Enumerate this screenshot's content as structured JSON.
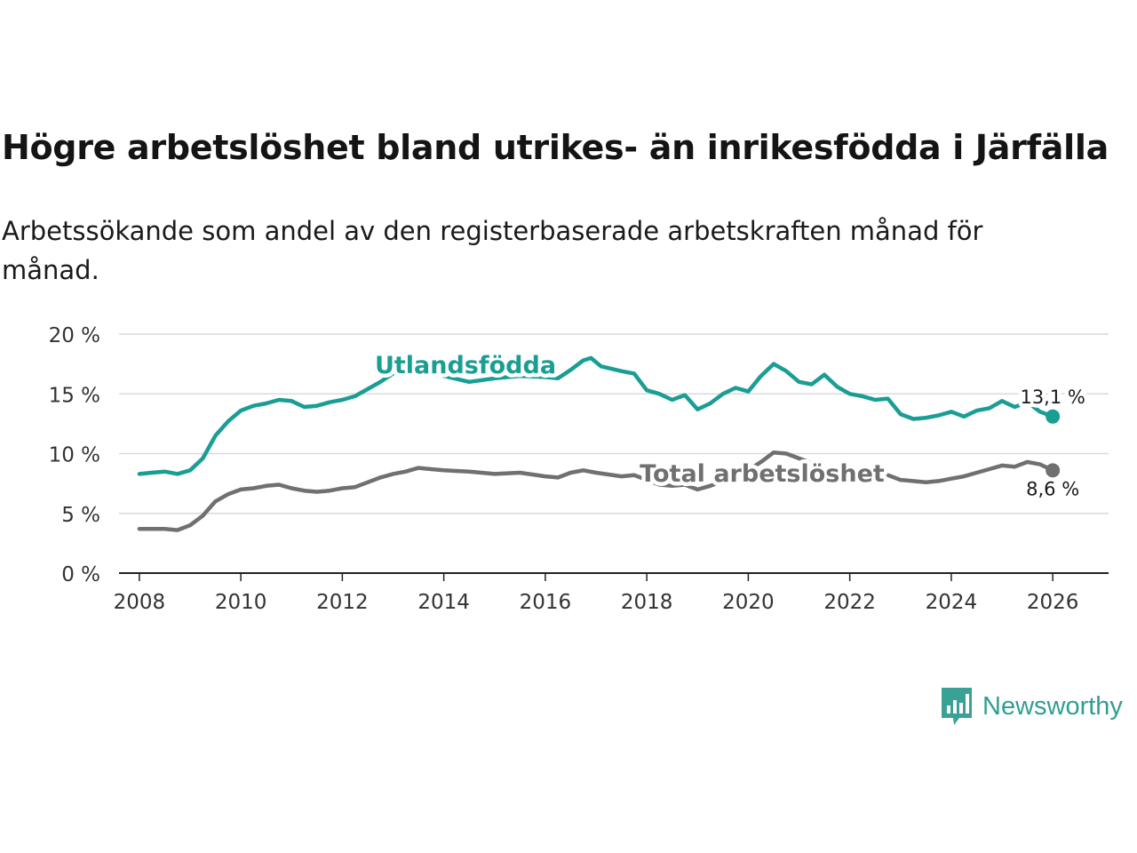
{
  "title": "Högre arbetslöshet bland utrikes- än inrikesfödda i Järfälla",
  "subtitle": "Arbetssökande som andel av den registerbaserade arbetskraften månad för månad.",
  "colors": {
    "foreign": "#1a9e94",
    "total": "#707070",
    "grid": "#d9d9d9",
    "axis": "#222222",
    "logo": "#3aa197"
  },
  "logo": {
    "text": "Newsworthy",
    "icon": "bar-chart-speech-bubble-icon"
  },
  "chart_data": {
    "type": "line",
    "title": "Högre arbetslöshet bland utrikes- än inrikesfödda i Järfälla",
    "xlabel": "",
    "ylabel": "",
    "xlim": [
      2007.6,
      2027.1
    ],
    "ylim": [
      0,
      20
    ],
    "y_ticks": [
      0,
      5,
      10,
      15,
      20
    ],
    "y_tick_labels": [
      "0 %",
      "5 %",
      "10 %",
      "15 %",
      "20 %"
    ],
    "x_ticks": [
      2008,
      2010,
      2012,
      2014,
      2016,
      2018,
      2020,
      2022,
      2024,
      2026
    ],
    "x_tick_labels": [
      "2008",
      "2010",
      "2012",
      "2014",
      "2016",
      "2018",
      "2020",
      "2022",
      "2024",
      "2026"
    ],
    "grid": true,
    "series": [
      {
        "name": "Utlandsfödda",
        "label": "Utlandsfödda",
        "end_label": "13,1 %",
        "points": [
          [
            2008.0,
            8.3
          ],
          [
            2008.25,
            8.4
          ],
          [
            2008.5,
            8.5
          ],
          [
            2008.75,
            8.3
          ],
          [
            2009.0,
            8.6
          ],
          [
            2009.25,
            9.6
          ],
          [
            2009.5,
            11.5
          ],
          [
            2009.75,
            12.7
          ],
          [
            2010.0,
            13.6
          ],
          [
            2010.25,
            14.0
          ],
          [
            2010.5,
            14.2
          ],
          [
            2010.75,
            14.5
          ],
          [
            2011.0,
            14.4
          ],
          [
            2011.25,
            13.9
          ],
          [
            2011.5,
            14.0
          ],
          [
            2011.75,
            14.3
          ],
          [
            2012.0,
            14.5
          ],
          [
            2012.25,
            14.8
          ],
          [
            2012.5,
            15.4
          ],
          [
            2012.75,
            16.0
          ],
          [
            2013.0,
            16.7
          ],
          [
            2013.25,
            17.2
          ],
          [
            2013.5,
            17.0
          ],
          [
            2013.75,
            16.8
          ],
          [
            2014.0,
            16.5
          ],
          [
            2014.5,
            16.0
          ],
          [
            2015.0,
            16.3
          ],
          [
            2015.5,
            16.5
          ],
          [
            2016.0,
            16.4
          ],
          [
            2016.25,
            16.3
          ],
          [
            2016.5,
            17.0
          ],
          [
            2016.75,
            17.8
          ],
          [
            2016.9,
            18.0
          ],
          [
            2017.1,
            17.3
          ],
          [
            2017.5,
            16.9
          ],
          [
            2017.75,
            16.7
          ],
          [
            2018.0,
            15.3
          ],
          [
            2018.25,
            15.0
          ],
          [
            2018.5,
            14.5
          ],
          [
            2018.75,
            14.9
          ],
          [
            2019.0,
            13.7
          ],
          [
            2019.25,
            14.2
          ],
          [
            2019.5,
            15.0
          ],
          [
            2019.75,
            15.5
          ],
          [
            2020.0,
            15.2
          ],
          [
            2020.25,
            16.5
          ],
          [
            2020.5,
            17.5
          ],
          [
            2020.75,
            16.9
          ],
          [
            2021.0,
            16.0
          ],
          [
            2021.25,
            15.8
          ],
          [
            2021.5,
            16.6
          ],
          [
            2021.75,
            15.6
          ],
          [
            2022.0,
            15.0
          ],
          [
            2022.25,
            14.8
          ],
          [
            2022.5,
            14.5
          ],
          [
            2022.75,
            14.6
          ],
          [
            2023.0,
            13.3
          ],
          [
            2023.25,
            12.9
          ],
          [
            2023.5,
            13.0
          ],
          [
            2023.75,
            13.2
          ],
          [
            2024.0,
            13.5
          ],
          [
            2024.25,
            13.1
          ],
          [
            2024.5,
            13.6
          ],
          [
            2024.75,
            13.8
          ],
          [
            2025.0,
            14.4
          ],
          [
            2025.25,
            13.9
          ],
          [
            2025.5,
            14.3
          ],
          [
            2025.75,
            13.5
          ],
          [
            2026.0,
            13.1
          ]
        ]
      },
      {
        "name": "Total arbetslöshet",
        "label": "Total arbetslöshet",
        "end_label": "8,6 %",
        "points": [
          [
            2008.0,
            3.7
          ],
          [
            2008.25,
            3.7
          ],
          [
            2008.5,
            3.7
          ],
          [
            2008.75,
            3.6
          ],
          [
            2009.0,
            4.0
          ],
          [
            2009.25,
            4.8
          ],
          [
            2009.5,
            6.0
          ],
          [
            2009.75,
            6.6
          ],
          [
            2010.0,
            7.0
          ],
          [
            2010.25,
            7.1
          ],
          [
            2010.5,
            7.3
          ],
          [
            2010.75,
            7.4
          ],
          [
            2011.0,
            7.1
          ],
          [
            2011.25,
            6.9
          ],
          [
            2011.5,
            6.8
          ],
          [
            2011.75,
            6.9
          ],
          [
            2012.0,
            7.1
          ],
          [
            2012.25,
            7.2
          ],
          [
            2012.5,
            7.6
          ],
          [
            2012.75,
            8.0
          ],
          [
            2013.0,
            8.3
          ],
          [
            2013.25,
            8.5
          ],
          [
            2013.5,
            8.8
          ],
          [
            2013.75,
            8.7
          ],
          [
            2014.0,
            8.6
          ],
          [
            2014.5,
            8.5
          ],
          [
            2015.0,
            8.3
          ],
          [
            2015.5,
            8.4
          ],
          [
            2016.0,
            8.1
          ],
          [
            2016.25,
            8.0
          ],
          [
            2016.5,
            8.4
          ],
          [
            2016.75,
            8.6
          ],
          [
            2017.0,
            8.4
          ],
          [
            2017.5,
            8.1
          ],
          [
            2017.75,
            8.2
          ],
          [
            2018.0,
            7.8
          ],
          [
            2018.25,
            7.4
          ],
          [
            2018.5,
            7.3
          ],
          [
            2018.75,
            7.4
          ],
          [
            2019.0,
            7.0
          ],
          [
            2019.25,
            7.3
          ],
          [
            2019.5,
            7.7
          ],
          [
            2019.75,
            8.2
          ],
          [
            2020.0,
            8.6
          ],
          [
            2020.25,
            9.3
          ],
          [
            2020.5,
            10.1
          ],
          [
            2020.75,
            10.0
          ],
          [
            2021.0,
            9.6
          ],
          [
            2021.25,
            9.2
          ],
          [
            2021.5,
            8.6
          ],
          [
            2021.75,
            8.5
          ],
          [
            2022.0,
            8.4
          ],
          [
            2022.25,
            8.3
          ],
          [
            2022.5,
            8.2
          ],
          [
            2022.75,
            8.2
          ],
          [
            2023.0,
            7.8
          ],
          [
            2023.25,
            7.7
          ],
          [
            2023.5,
            7.6
          ],
          [
            2023.75,
            7.7
          ],
          [
            2024.0,
            7.9
          ],
          [
            2024.25,
            8.1
          ],
          [
            2024.5,
            8.4
          ],
          [
            2024.75,
            8.7
          ],
          [
            2025.0,
            9.0
          ],
          [
            2025.25,
            8.9
          ],
          [
            2025.5,
            9.3
          ],
          [
            2025.75,
            9.1
          ],
          [
            2026.0,
            8.6
          ]
        ]
      }
    ]
  }
}
